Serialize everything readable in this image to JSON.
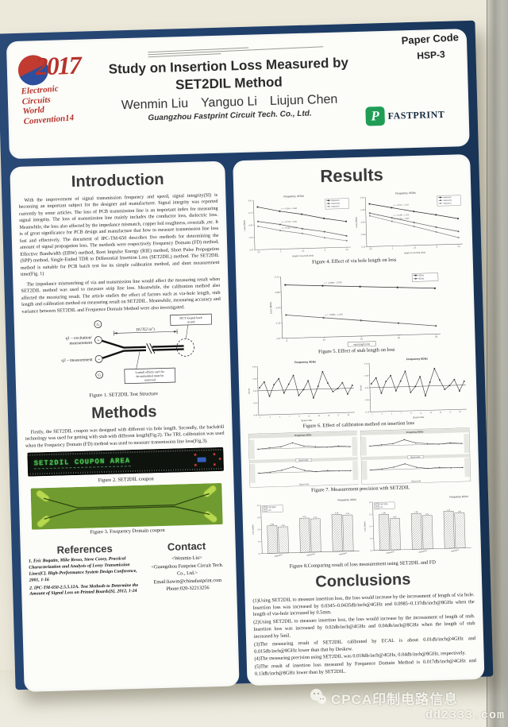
{
  "header": {
    "paper_code_label": "Paper Code",
    "paper_code": "HSP-3",
    "logo": {
      "year": "2017",
      "lines": [
        "Electronic",
        "Circuits",
        "World",
        "Convention14"
      ]
    },
    "title1": "Study on Insertion Loss Measured by",
    "title2": "SET2DIL Method",
    "authors": [
      "Wenmin Liu",
      "Yanguo Li",
      "Liujun Chen"
    ],
    "affiliation": "Guangzhou Fastprint Circuit Tech. Co., Ltd.",
    "brand": "FASTPRINT",
    "brand_glyph": "P"
  },
  "intro": {
    "heading": "Introduction",
    "p1": "With the improvement of signal transmission frequency and speed, signal integrity(SI) is becoming an important subject for the designer and manufacturer. Signal integrity was reported currently by some articles. The loss of PCB transmission line is an important index for measuring signal integrity. The loss of transmission line mainly includes the conductor loss, dielectric loss. Meanwhile, the loss also affected by the impedance mismatch, copper foil roughness, crosstalk ,etc. It is of great significance for PCB design and manufacture that how to measure transmission line loss fast and effectively. The document of IPC-TM-650 describes five methods for determining the amount of signal propagation loss. The methods were respectively Frequency Domain (FD) method, Effective Bandwidth (EBW) method, Root Impulse Energy (RIE) method, Short Pulse Propagation (SPP) method, Single-Ended TDR to Differential Insertion Loss (SET2DIL) method. The SET2DIL method is suitable for PCB batch test for its simple calibration method, and short measurement time(Fig. 1)",
    "p2": "The impedance mismatching of via and transmission line would affect the measuring result when SET2DIL method was used to measure strip line loss. Meanwhile, the calibration method also affected the measuring result. The article studies the effect of factors such as via-hole length, stub length and calibration method on measuring result on SET2DIL. Meanwhile, measuring accuracy and variance between SET2DIL and Frequence Domain Method were also investigated."
  },
  "fig1": {
    "g": "G",
    "plus": "+",
    "minus": "-",
    "q1a": "q1 – excitation/",
    "q1b": "measurement",
    "q2": "q2 – measurement",
    "dut": "DUT(2 in\")",
    "callout1a": "DUT looped back",
    "callout1b": "at end",
    "callout2a": "Launch effects can't be",
    "callout2b": "de-embedded must be",
    "callout2c": "removed",
    "caption": "Figure 1. SET2DIL Test Structure"
  },
  "methods": {
    "heading": "Methods",
    "p": "Firstly, the SET2DIL coupon was designed with different via hole length. Secondly, the backdrill technology was used for getting with stub with different length(Fig.2). The TRL calibriation was used when the Frequency Domain (FD) method was used to measure transmission line loss(Fig.3)."
  },
  "fig2": {
    "board_text": "SET2DIL COUPON AREA",
    "caption": "Figure 2. SET2DIL coupon"
  },
  "fig3": {
    "caption": "Figure 3. Frequency Domain coupon"
  },
  "references": {
    "heading": "References",
    "items": [
      "1. Eric Bogatin, Mike Resso, Steve Corey, Practical Characterization and Analysis of Lossy Transmission Lines[C]. High-Performance System Design Conference, 2001, 1-16",
      "2. IPC-TM-650-2.5.5.12A. Test Methods to Determine the Amount of Signal Loss on Printed Boards[S]. 2012, 1-24"
    ]
  },
  "contact": {
    "heading": "Contact",
    "lines": [
      "<Wenmin Liu>",
      "<Guangzhou Fastprint Circuit Tech. Co., Ltd.>",
      "Email:liuwm@chinafastprint.com",
      "Phone:020-32213256"
    ]
  },
  "results": {
    "heading": "Results"
  },
  "captions": {
    "fig4": "Figure 4. Effect of via hole length on loss",
    "fig5": "Figure 5. Effect of stub length on loss",
    "fig6": "Figure 6. Effect of calibration method on insertion loss",
    "fig7": "Figure 7. Measurement precision with SET2DIL",
    "fig8": "Figure 8.Comparing result of loss measurement using SET2DIL and FD"
  },
  "conclusions": {
    "heading": "Conclusions",
    "items": [
      "(1)Using SET2DIL to measure insertion loss, the loss would increase by the increasment of length of via hole. Insertion loss was increased by 0.0345–0.0435db/inch@4GHz and 0.0985–0.137db/inch@8GHz when the length of via-hole increased by 0.5mm.",
      "(2)Using SET2DIL to measure insertion loss, the loss would increase by the increasment of length of stub. Insertion loss was increased by 0.02db/inch@4GHz and 0.04db/inch@8GHz when the length of stub increased by 5mil.",
      "(3)The measuring result of SET2DIL calibrated by ECAL is about 0.01db/inch@4GHz and 0.015db/inch@8GHz lower than that by Deskew.",
      "(4)The measuring precision using SET2DIL was 0.018db/inch@4GHz, 0.04db/inch@8GHz, respectively.",
      "(5)The result of insertion loss measured by Frequence Domain Method is 0.017db/inch@4GHz and 0.13db/inch@8GHz lower than by SET2DIL."
    ]
  },
  "watermark": {
    "line1": "CPCA印制电路信息",
    "line2": "dd2333.com"
  },
  "chart_data": [
    {
      "id": "fig4a",
      "type": "line",
      "title": "Frequency: 4GHz",
      "x": [
        0.5,
        1.0,
        1.5,
        2.0,
        2.5
      ],
      "series": [
        {
          "name": "material A",
          "values": [
            -0.72,
            -0.76,
            -0.79,
            -0.83,
            -0.86
          ]
        },
        {
          "name": "material B",
          "values": [
            -0.84,
            -0.87,
            -0.91,
            -0.94,
            -0.98
          ]
        },
        {
          "name": "material C",
          "values": [
            -0.88,
            -0.92,
            -0.95,
            -0.99,
            -1.02
          ]
        }
      ],
      "legend": [
        "material A",
        "material B",
        "material C"
      ],
      "annotations": [
        "y = -0.069x - 0.688",
        "y = -0.076x - 0.801",
        "y = -0.087x - 0.838"
      ],
      "xlabel": "length of via hole (mm)",
      "ylabel": "Loss (db/in)"
    },
    {
      "id": "fig4b",
      "type": "line",
      "title": "Frequency: 8GHz",
      "x": [
        0.5,
        1.0,
        1.5,
        2.0,
        2.5
      ],
      "series": [
        {
          "name": "material A",
          "values": [
            -1.15,
            -1.25,
            -1.35,
            -1.44,
            -1.54
          ]
        },
        {
          "name": "material B",
          "values": [
            -1.36,
            -1.48,
            -1.6,
            -1.72,
            -1.83
          ]
        },
        {
          "name": "material C",
          "values": [
            -1.42,
            -1.56,
            -1.69,
            -1.83,
            -1.97
          ]
        }
      ],
      "legend": [
        "material A",
        "material B",
        "material C"
      ],
      "annotations": [
        "y = -0.197x - 1.053",
        "y = -0.238x - 1.266",
        "y = -0.274x - 1.280"
      ],
      "xlabel": "length of via hole (mm)",
      "ylabel": "Loss (db/in)"
    },
    {
      "id": "fig5",
      "type": "line",
      "title": "",
      "x": [
        5,
        10,
        15,
        20,
        25
      ],
      "series": [
        {
          "name": "4GHz",
          "values": [
            -0.8,
            -0.82,
            -0.84,
            -0.86,
            -0.88
          ]
        },
        {
          "name": "8GHz",
          "values": [
            -1.12,
            -1.16,
            -1.2,
            -1.24,
            -1.28
          ]
        }
      ],
      "legend": [
        "4GHz",
        "8GHz"
      ],
      "annotations": [
        "y = -0.004x - 0.780",
        "y = -0.008x - 1.120"
      ],
      "xlabel": "stub length (mil)",
      "xlabel_boxed": true,
      "ylabel": "Loss (db/in)"
    },
    {
      "id": "fig6a",
      "type": "run",
      "title": "Frequency 4GHz",
      "values": [
        0.01,
        0.03,
        -0.02,
        0.02,
        0.04,
        -0.01,
        0.02,
        0.05,
        -0.02,
        0.0,
        0.03,
        -0.03,
        0.01,
        0.06,
        0.02,
        -0.01,
        0.0,
        0.02,
        -0.02,
        0.01
      ],
      "xlabel": "Board order",
      "ylabel": "ΔLoss"
    },
    {
      "id": "fig6b",
      "type": "run",
      "title": "Frequency 8GHz",
      "values": [
        0.02,
        0.05,
        -0.03,
        0.03,
        0.06,
        -0.02,
        0.03,
        0.08,
        -0.03,
        0.0,
        0.05,
        -0.05,
        0.02,
        0.09,
        0.03,
        -0.02,
        0.0,
        0.03,
        -0.03,
        0.02
      ],
      "xlabel": "Board order",
      "ylabel": "ΔLoss"
    },
    {
      "id": "fig7a",
      "type": "precision",
      "title": "Frequency 4GHz",
      "top": [
        0.0,
        0.01,
        0.02,
        0.06,
        0.02,
        0.01,
        0.0,
        0.01,
        0.0
      ],
      "bottom": [
        0.0,
        0.01,
        0.03,
        0.07,
        0.02,
        0.0,
        0.01,
        0.0,
        0.0
      ],
      "mid_label": "Board order",
      "xlabel": "Board order"
    },
    {
      "id": "fig7b",
      "type": "precision",
      "title": "Frequency 8GHz",
      "top": [
        0.0,
        0.02,
        0.04,
        0.12,
        0.04,
        0.02,
        0.0,
        0.02,
        0.0
      ],
      "bottom": [
        0.0,
        0.02,
        0.06,
        0.14,
        0.04,
        0.0,
        0.02,
        0.0,
        0.0
      ],
      "mid_label": "Board order",
      "xlabel": "Board order"
    },
    {
      "id": "fig8a",
      "type": "bar",
      "title": "Frequency 4GHz",
      "categories": [
        "material A",
        "material B",
        "material C"
      ],
      "series": [
        {
          "name": "SET2DIL",
          "values": [
            0.58,
            0.72,
            0.78
          ]
        },
        {
          "name": "FD",
          "values": [
            0.55,
            0.7,
            0.76
          ]
        }
      ],
      "ylabel": "Loss (db/in)"
    },
    {
      "id": "fig8b",
      "type": "bar",
      "title": "Frequency 8GHz",
      "categories": [
        "material A",
        "material B",
        "material C"
      ],
      "series": [
        {
          "name": "SET2DIL",
          "values": [
            1.08,
            1.08,
            1.12
          ]
        },
        {
          "name": "FD",
          "values": [
            0.95,
            1.01,
            1.06
          ]
        }
      ],
      "ylabel": "Loss (db/in)"
    }
  ]
}
